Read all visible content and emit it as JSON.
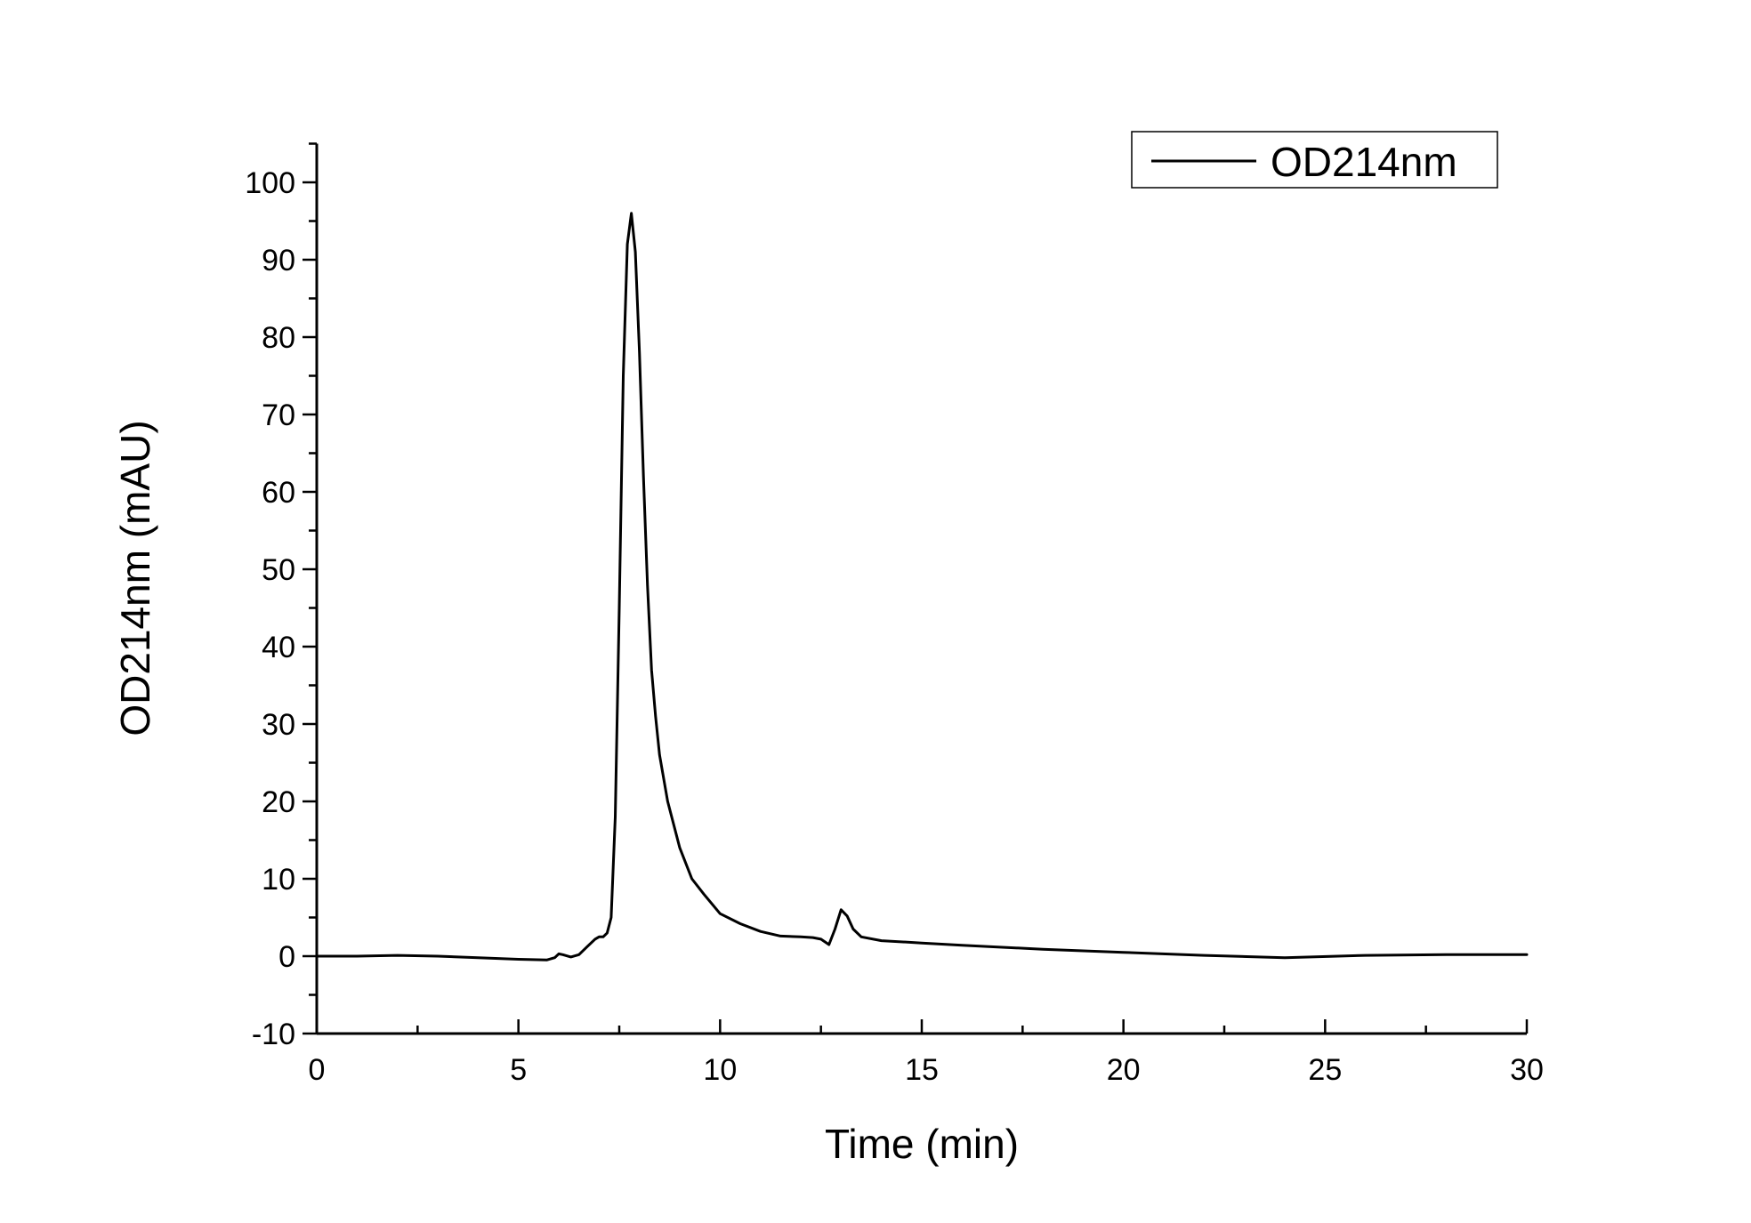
{
  "chart_data": {
    "type": "line",
    "title": "",
    "xlabel": "Time (min)",
    "ylabel": "OD214nm (mAU)",
    "xlim": [
      0,
      30
    ],
    "ylim": [
      -10,
      105
    ],
    "xticks": [
      0,
      5,
      10,
      15,
      20,
      25,
      30
    ],
    "yticks": [
      -10,
      0,
      10,
      20,
      30,
      40,
      50,
      60,
      70,
      80,
      90,
      100
    ],
    "grid": false,
    "legend_position": "top-right",
    "line_color": "#000000",
    "series": [
      {
        "name": "OD214nm",
        "x": [
          0,
          1,
          2,
          3,
          4,
          5,
          5.7,
          5.9,
          6.0,
          6.1,
          6.3,
          6.5,
          6.7,
          6.9,
          7.0,
          7.1,
          7.2,
          7.3,
          7.4,
          7.5,
          7.6,
          7.7,
          7.8,
          7.9,
          8.0,
          8.1,
          8.2,
          8.3,
          8.4,
          8.5,
          8.7,
          9.0,
          9.3,
          9.6,
          10,
          10.5,
          11,
          11.5,
          12,
          12.3,
          12.5,
          12.7,
          12.85,
          13.0,
          13.15,
          13.3,
          13.5,
          14,
          15,
          16,
          18,
          20,
          22,
          24,
          26,
          28,
          30
        ],
        "y": [
          0,
          0,
          0.1,
          0,
          -0.2,
          -0.4,
          -0.5,
          -0.2,
          0.3,
          0.2,
          -0.1,
          0.2,
          1.2,
          2.2,
          2.5,
          2.5,
          3.0,
          5.0,
          18,
          45,
          75,
          92,
          96,
          91,
          78,
          62,
          48,
          37,
          31,
          26,
          20,
          14,
          10,
          8,
          5.5,
          4.2,
          3.2,
          2.6,
          2.5,
          2.4,
          2.2,
          1.5,
          3.5,
          6.0,
          5.2,
          3.5,
          2.5,
          2.0,
          1.7,
          1.4,
          0.9,
          0.5,
          0.1,
          -0.2,
          0.1,
          0.2,
          0.2
        ]
      }
    ]
  }
}
